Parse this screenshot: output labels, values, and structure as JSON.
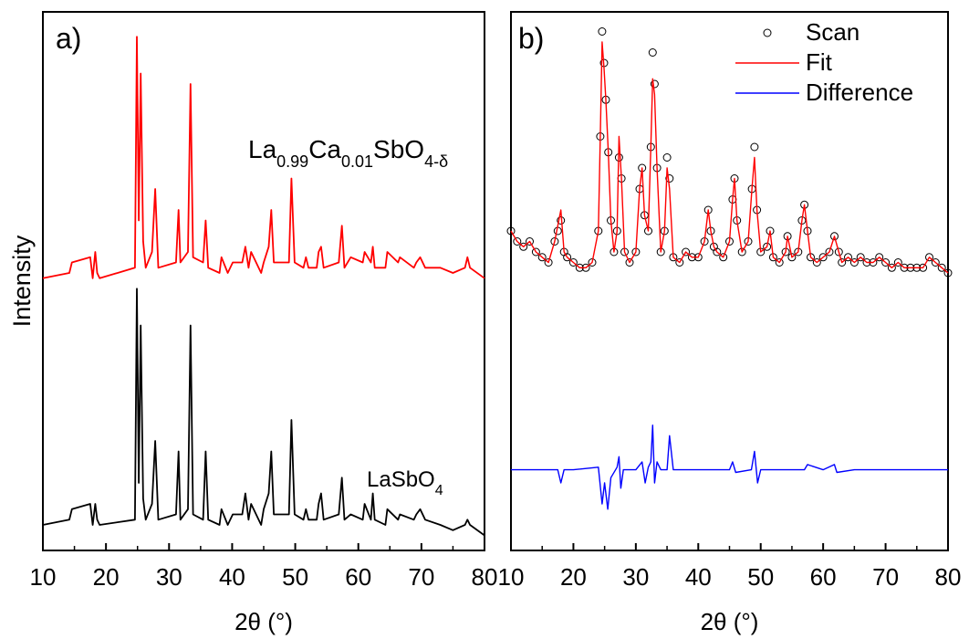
{
  "chart_data": [
    {
      "panel_label": "a)",
      "type": "line",
      "xlabel": "2θ (°)",
      "ylabel": "Intensity",
      "xlim": [
        10,
        80
      ],
      "xticks": [
        10,
        20,
        30,
        40,
        50,
        60,
        70,
        80
      ],
      "ylim": [
        0,
        1.0
      ],
      "series": [
        {
          "label_parts": [
            {
              "text": "La",
              "sub": false
            },
            {
              "text": "0.99",
              "sub": true
            },
            {
              "text": "Ca",
              "sub": false
            },
            {
              "text": "0.01",
              "sub": true
            },
            {
              "text": "SbO",
              "sub": false
            },
            {
              "text": "4-δ",
              "sub": true
            }
          ],
          "color": "#ff0000",
          "baseline": 0.506,
          "x": [
            10,
            14.2,
            14.6,
            17.5,
            17.9,
            18.3,
            18.6,
            19,
            24.6,
            24.9,
            25.2,
            25.5,
            25.9,
            26.3,
            27.3,
            27.8,
            28.3,
            31.1,
            31.5,
            31.8,
            33.0,
            33.4,
            33.8,
            35.4,
            35.8,
            36.2,
            38.0,
            38.3,
            39.3,
            40.1,
            41.6,
            42.1,
            42.6,
            43.0,
            44.6,
            45.0,
            45.8,
            46.2,
            46.6,
            49.0,
            49.4,
            49.9,
            51.3,
            51.7,
            52.1,
            53.4,
            53.7,
            54.1,
            54.5,
            56.9,
            57.4,
            57.8,
            58.8,
            60.7,
            61.0,
            62.0,
            62.3,
            62.6,
            64.3,
            64.6,
            66.3,
            66.6,
            68.8,
            69.2,
            69.8,
            70.6,
            73.0,
            75.0,
            76.9,
            77.3,
            77.7,
            80
          ],
          "y": [
            0.51,
            0.52,
            0.54,
            0.55,
            0.51,
            0.56,
            0.52,
            0.51,
            0.53,
            0.97,
            0.62,
            0.9,
            0.58,
            0.53,
            0.56,
            0.68,
            0.53,
            0.54,
            0.64,
            0.54,
            0.56,
            0.88,
            0.55,
            0.54,
            0.62,
            0.53,
            0.52,
            0.55,
            0.52,
            0.54,
            0.54,
            0.57,
            0.53,
            0.56,
            0.52,
            0.54,
            0.57,
            0.64,
            0.54,
            0.54,
            0.7,
            0.54,
            0.53,
            0.55,
            0.53,
            0.53,
            0.56,
            0.57,
            0.53,
            0.54,
            0.61,
            0.53,
            0.55,
            0.54,
            0.56,
            0.54,
            0.57,
            0.53,
            0.53,
            0.56,
            0.54,
            0.55,
            0.53,
            0.54,
            0.55,
            0.53,
            0.53,
            0.52,
            0.53,
            0.55,
            0.53,
            0.51
          ]
        },
        {
          "label_parts": [
            {
              "text": "LaSbO",
              "sub": false
            },
            {
              "text": "4",
              "sub": true
            }
          ],
          "color": "#000000",
          "baseline": 0.0,
          "x": [
            10,
            14.2,
            14.6,
            17.5,
            17.9,
            18.3,
            18.6,
            19,
            24.6,
            24.9,
            25.2,
            25.5,
            25.9,
            26.3,
            27.3,
            27.8,
            28.3,
            31.1,
            31.5,
            31.8,
            33.0,
            33.4,
            33.8,
            35.4,
            35.8,
            36.2,
            38.0,
            38.3,
            39.3,
            40.1,
            41.6,
            42.1,
            42.6,
            43.0,
            44.6,
            45.0,
            45.8,
            46.2,
            46.6,
            49.0,
            49.4,
            49.9,
            51.3,
            51.7,
            52.1,
            53.4,
            53.7,
            54.1,
            54.5,
            56.9,
            57.4,
            57.8,
            58.8,
            60.7,
            61.0,
            62.0,
            62.3,
            62.6,
            64.3,
            64.6,
            66.3,
            66.6,
            68.8,
            69.2,
            69.8,
            70.6,
            73.0,
            75.0,
            76.9,
            77.3,
            77.7,
            80
          ],
          "y": [
            0.04,
            0.05,
            0.07,
            0.08,
            0.04,
            0.08,
            0.05,
            0.04,
            0.05,
            0.49,
            0.12,
            0.42,
            0.09,
            0.05,
            0.08,
            0.2,
            0.05,
            0.06,
            0.18,
            0.05,
            0.07,
            0.42,
            0.06,
            0.05,
            0.18,
            0.05,
            0.04,
            0.07,
            0.04,
            0.06,
            0.06,
            0.1,
            0.05,
            0.08,
            0.04,
            0.07,
            0.1,
            0.18,
            0.06,
            0.06,
            0.24,
            0.06,
            0.05,
            0.07,
            0.05,
            0.05,
            0.08,
            0.1,
            0.05,
            0.06,
            0.13,
            0.05,
            0.06,
            0.05,
            0.08,
            0.05,
            0.1,
            0.05,
            0.04,
            0.07,
            0.05,
            0.06,
            0.05,
            0.06,
            0.07,
            0.05,
            0.04,
            0.03,
            0.04,
            0.05,
            0.04,
            0.02
          ]
        }
      ]
    },
    {
      "panel_label": "b)",
      "type": "line",
      "xlabel": "2θ (°)",
      "xlim": [
        10,
        80
      ],
      "xticks": [
        10,
        20,
        30,
        40,
        50,
        60,
        70,
        80
      ],
      "ylim": [
        0,
        1.0
      ],
      "legend": {
        "position": "top-right",
        "entries": [
          {
            "name": "Scan",
            "kind": "marker",
            "color": "#000000"
          },
          {
            "name": "Fit",
            "kind": "line",
            "color": "#ff0000"
          },
          {
            "name": "Difference",
            "kind": "line",
            "color": "#0000ff"
          }
        ]
      },
      "scan": {
        "x": [
          10,
          11,
          12,
          13,
          14,
          15,
          16,
          17,
          17.5,
          18,
          18.5,
          19,
          20,
          21,
          22,
          23,
          24,
          24.3,
          24.6,
          24.9,
          25.2,
          25.6,
          26,
          26.5,
          27,
          27.3,
          27.7,
          28.2,
          29,
          30,
          30.6,
          31,
          31.4,
          32,
          32.4,
          32.7,
          33.0,
          33.4,
          34,
          34.6,
          35.0,
          35.4,
          36,
          37,
          38,
          39,
          40,
          41,
          41.6,
          42,
          42.5,
          43,
          44,
          45,
          45.5,
          45.8,
          46.2,
          47,
          48,
          48.6,
          49,
          49.4,
          50,
          51,
          51.5,
          52,
          53,
          54,
          54.3,
          55,
          56,
          56.6,
          57,
          57.5,
          58,
          59,
          60,
          61,
          61.8,
          62.5,
          63,
          64,
          65,
          66,
          67,
          68,
          69,
          70,
          71,
          72,
          73,
          74,
          75,
          76,
          77,
          78,
          79,
          80
        ],
        "y": [
          0.6,
          0.58,
          0.57,
          0.58,
          0.56,
          0.55,
          0.54,
          0.58,
          0.6,
          0.62,
          0.56,
          0.55,
          0.54,
          0.53,
          0.53,
          0.54,
          0.6,
          0.78,
          0.98,
          0.92,
          0.85,
          0.75,
          0.62,
          0.56,
          0.6,
          0.74,
          0.7,
          0.56,
          0.54,
          0.56,
          0.68,
          0.72,
          0.63,
          0.6,
          0.76,
          0.94,
          0.88,
          0.72,
          0.56,
          0.6,
          0.74,
          0.7,
          0.55,
          0.54,
          0.56,
          0.55,
          0.55,
          0.58,
          0.64,
          0.6,
          0.57,
          0.56,
          0.55,
          0.58,
          0.66,
          0.7,
          0.62,
          0.56,
          0.58,
          0.68,
          0.76,
          0.64,
          0.56,
          0.57,
          0.6,
          0.55,
          0.54,
          0.56,
          0.59,
          0.55,
          0.56,
          0.62,
          0.65,
          0.6,
          0.55,
          0.54,
          0.55,
          0.56,
          0.59,
          0.56,
          0.54,
          0.55,
          0.54,
          0.55,
          0.54,
          0.54,
          0.55,
          0.54,
          0.53,
          0.54,
          0.53,
          0.53,
          0.53,
          0.53,
          0.55,
          0.54,
          0.53,
          0.52
        ]
      },
      "fit": {
        "x": [
          10,
          11,
          12,
          13,
          14,
          15,
          16,
          17,
          17.5,
          18,
          18.5,
          19,
          20,
          21,
          22,
          23,
          24,
          24.3,
          24.6,
          24.9,
          25.2,
          25.6,
          26,
          26.5,
          27,
          27.3,
          27.7,
          28.2,
          29,
          30,
          30.6,
          31,
          31.4,
          32,
          32.4,
          32.7,
          33.0,
          33.4,
          34,
          34.6,
          35.0,
          35.4,
          36,
          37,
          38,
          39,
          40,
          41,
          41.6,
          42,
          42.5,
          43,
          44,
          45,
          45.5,
          45.8,
          46.2,
          47,
          48,
          48.6,
          49,
          49.4,
          50,
          51,
          51.5,
          52,
          53,
          54,
          54.3,
          55,
          56,
          56.6,
          57,
          57.5,
          58,
          59,
          60,
          61,
          61.8,
          62.5,
          63,
          64,
          65,
          66,
          67,
          68,
          69,
          70,
          71,
          72,
          73,
          74,
          75,
          76,
          77,
          78,
          79,
          80
        ],
        "y": [
          0.6,
          0.58,
          0.57,
          0.58,
          0.56,
          0.55,
          0.54,
          0.58,
          0.61,
          0.64,
          0.56,
          0.55,
          0.54,
          0.53,
          0.53,
          0.54,
          0.6,
          0.78,
          0.96,
          0.91,
          0.85,
          0.75,
          0.62,
          0.56,
          0.6,
          0.78,
          0.7,
          0.56,
          0.54,
          0.56,
          0.68,
          0.72,
          0.63,
          0.6,
          0.76,
          0.89,
          0.86,
          0.72,
          0.56,
          0.6,
          0.72,
          0.68,
          0.55,
          0.54,
          0.56,
          0.55,
          0.55,
          0.58,
          0.64,
          0.6,
          0.57,
          0.56,
          0.55,
          0.58,
          0.66,
          0.7,
          0.62,
          0.56,
          0.58,
          0.68,
          0.74,
          0.64,
          0.56,
          0.57,
          0.6,
          0.55,
          0.54,
          0.56,
          0.59,
          0.55,
          0.56,
          0.62,
          0.65,
          0.6,
          0.55,
          0.54,
          0.55,
          0.56,
          0.59,
          0.56,
          0.54,
          0.55,
          0.54,
          0.55,
          0.54,
          0.54,
          0.55,
          0.54,
          0.53,
          0.54,
          0.53,
          0.53,
          0.53,
          0.53,
          0.55,
          0.54,
          0.53,
          0.52
        ]
      },
      "difference": {
        "x": [
          10,
          14,
          17.5,
          18,
          18.5,
          20,
          24,
          24.6,
          25,
          25.5,
          26,
          27,
          27.3,
          27.6,
          28,
          30,
          31,
          31.5,
          32,
          32.4,
          32.7,
          33,
          33.4,
          34,
          35,
          35.4,
          36,
          40,
          45,
          45.5,
          46,
          48.5,
          49,
          49.5,
          50,
          55,
          57,
          57.5,
          60,
          61.8,
          62.2,
          65,
          70,
          75,
          80
        ],
        "y": [
          0.145,
          0.145,
          0.145,
          0.12,
          0.145,
          0.145,
          0.15,
          0.08,
          0.12,
          0.07,
          0.13,
          0.15,
          0.17,
          0.11,
          0.145,
          0.145,
          0.16,
          0.12,
          0.15,
          0.16,
          0.23,
          0.12,
          0.16,
          0.145,
          0.145,
          0.21,
          0.145,
          0.145,
          0.145,
          0.16,
          0.14,
          0.145,
          0.18,
          0.12,
          0.145,
          0.145,
          0.145,
          0.155,
          0.145,
          0.155,
          0.14,
          0.145,
          0.145,
          0.145,
          0.145
        ]
      }
    }
  ]
}
